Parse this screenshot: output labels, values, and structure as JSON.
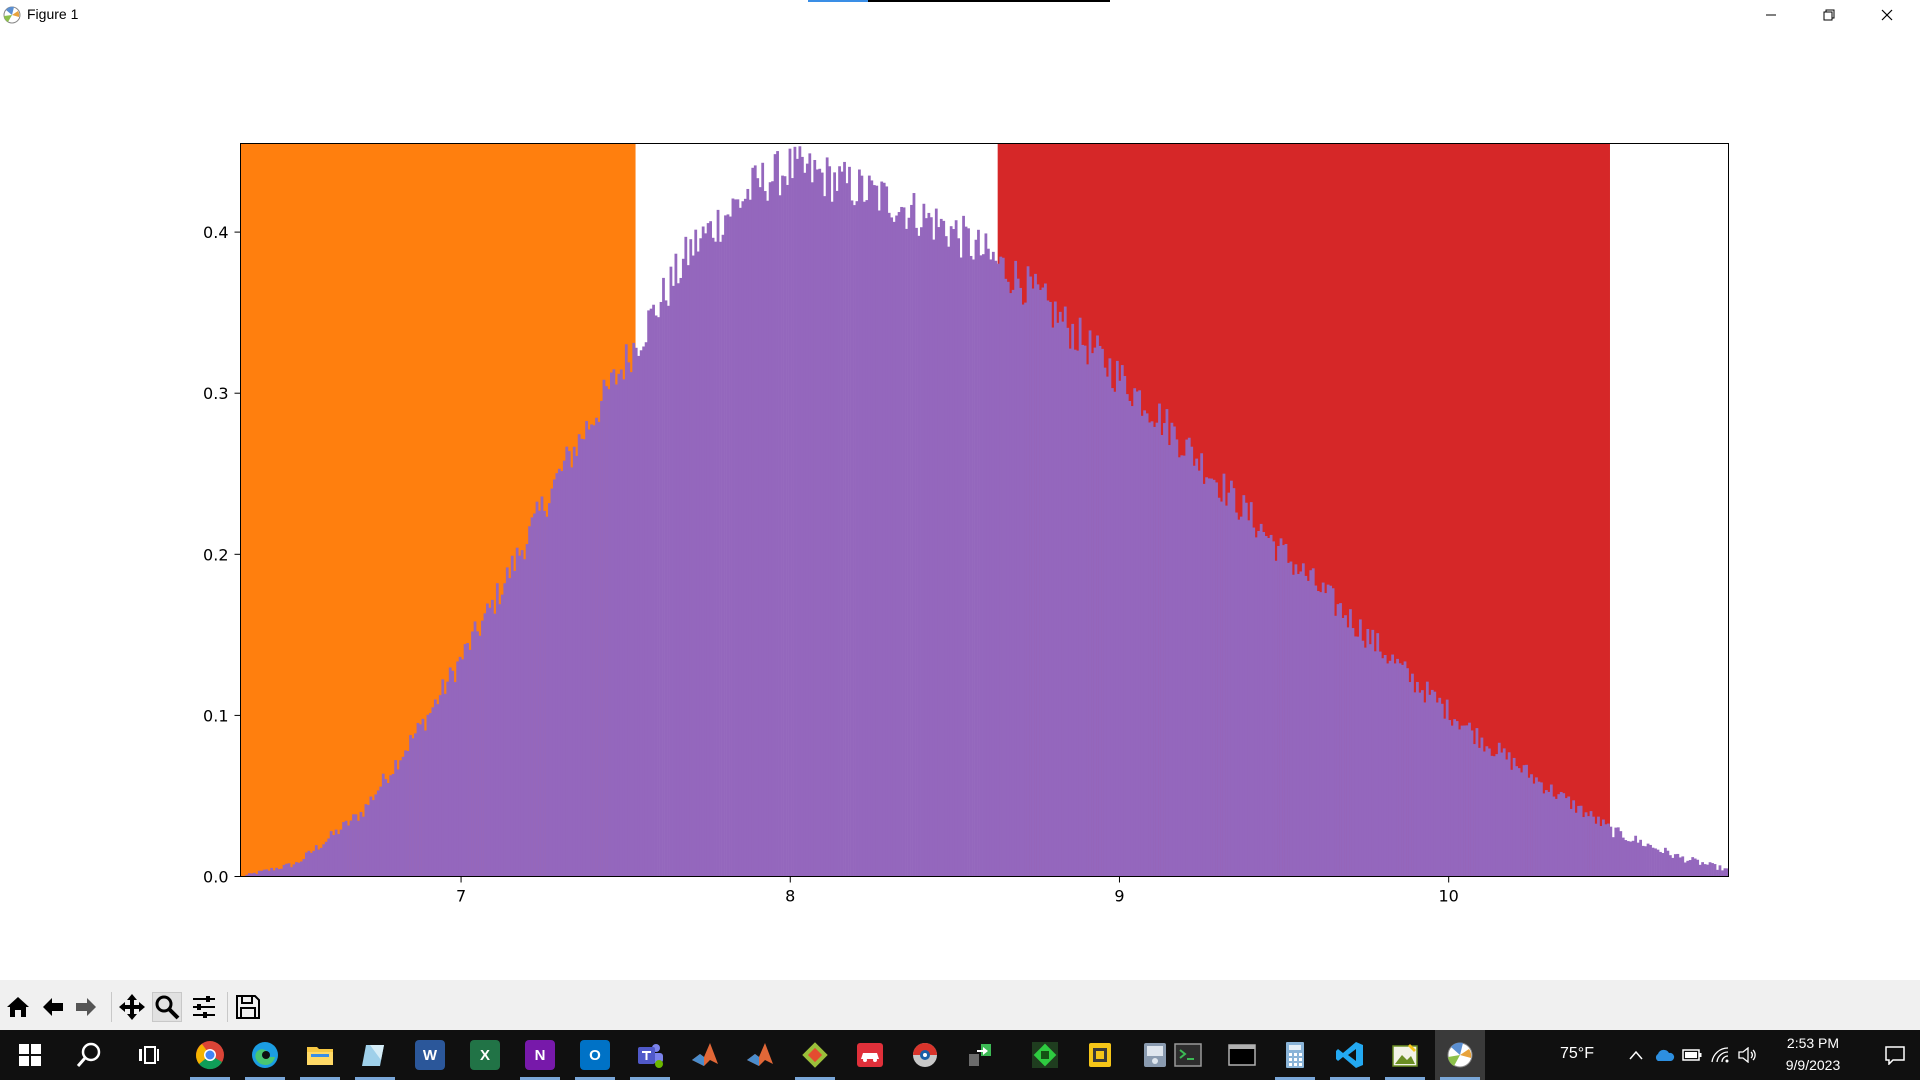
{
  "window": {
    "title": "Figure 1"
  },
  "chart_data": {
    "type": "bar",
    "xlim": [
      6.33,
      10.85
    ],
    "ylim": [
      0.0,
      0.455
    ],
    "xticks": [
      7,
      8,
      9,
      10
    ],
    "yticks": [
      0.0,
      0.1,
      0.2,
      0.3,
      0.4
    ],
    "xtick_labels": [
      "7",
      "8",
      "9",
      "10"
    ],
    "ytick_labels": [
      "0.0",
      "0.1",
      "0.2",
      "0.3",
      "0.4"
    ],
    "grid": false,
    "regions": [
      {
        "x_start": 6.33,
        "x_end": 7.53,
        "height": 0.455,
        "color": "#ff7f0e"
      },
      {
        "x_start": 8.63,
        "x_end": 10.49,
        "height": 0.455,
        "color": "#d62728"
      }
    ],
    "histogram": {
      "color": "#9467bd",
      "x": [
        6.33,
        6.5,
        6.7,
        6.9,
        7.1,
        7.3,
        7.5,
        7.7,
        7.9,
        8.0,
        8.1,
        8.3,
        8.5,
        8.7,
        8.9,
        9.1,
        9.3,
        9.5,
        9.7,
        9.9,
        10.1,
        10.3,
        10.5,
        10.7,
        10.85
      ],
      "y": [
        0.0,
        0.008,
        0.04,
        0.1,
        0.17,
        0.25,
        0.32,
        0.39,
        0.43,
        0.44,
        0.435,
        0.42,
        0.4,
        0.37,
        0.33,
        0.29,
        0.245,
        0.2,
        0.16,
        0.12,
        0.085,
        0.055,
        0.028,
        0.012,
        0.004
      ]
    }
  },
  "toolbar": {
    "buttons": [
      "home-icon",
      "back-arrow-icon",
      "forward-arrow-icon",
      "pan-icon",
      "zoom-icon",
      "configure-subplots-icon",
      "save-icon"
    ]
  },
  "taskbar": {
    "weather": "75°F",
    "time": "2:53 PM",
    "date": "9/9/2023",
    "apps": [
      "chrome-icon",
      "edge-icon",
      "file-explorer-icon",
      "notepad-icon",
      "word-icon",
      "excel-icon",
      "onenote-icon",
      "outlook-icon",
      "teams-icon",
      "matlab-icon",
      "matlab-icon-2",
      "git-icon",
      "car-icon",
      "globe-icon",
      "network-icon",
      "green-app-icon",
      "yellow-app-icon",
      "tool-app-icon",
      "terminal-icon",
      "cmd-icon",
      "calculator-icon",
      "vscode-icon",
      "image-app-icon",
      "python-figure-icon"
    ],
    "word_letter": "W",
    "excel_letter": "X",
    "onenote_letter": "N",
    "outlook_letter": "O"
  }
}
